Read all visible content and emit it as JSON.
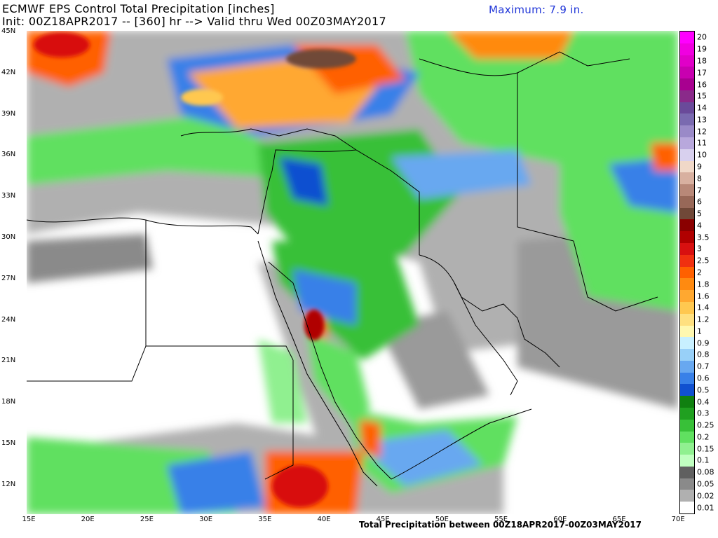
{
  "header": {
    "title": "ECMWF EPS Control Total Precipitation [inches]",
    "subtitle": "Init: 00Z18APR2017 -- [360] hr --> Valid thru Wed 00Z03MAY2017",
    "maximum": "Maximum: 7.9 in."
  },
  "footer": "Total Precipitation between 00Z18APR2017-00Z03MAY2017",
  "map": {
    "lon_labels": [
      "15E",
      "20E",
      "25E",
      "30E",
      "35E",
      "40E",
      "45E",
      "50E",
      "55E",
      "60E",
      "65E",
      "70E"
    ],
    "lat_labels": [
      "45N",
      "42N",
      "39N",
      "36N",
      "33N",
      "30N",
      "27N",
      "24N",
      "21N",
      "18N",
      "15N",
      "12N"
    ]
  },
  "legend": {
    "levels": [
      {
        "label": "20",
        "color": "#ff00ff"
      },
      {
        "label": "19",
        "color": "#f000e0"
      },
      {
        "label": "18",
        "color": "#e000c8"
      },
      {
        "label": "17",
        "color": "#c800b0"
      },
      {
        "label": "16",
        "color": "#a80090"
      },
      {
        "label": "15",
        "color": "#8a2a8a"
      },
      {
        "label": "14",
        "color": "#6a4a9a"
      },
      {
        "label": "13",
        "color": "#7a6ab0"
      },
      {
        "label": "12",
        "color": "#9a8ac8"
      },
      {
        "label": "11",
        "color": "#b8a8dc"
      },
      {
        "label": "10",
        "color": "#d8d0ee"
      },
      {
        "label": "9",
        "color": "#f0d8c8"
      },
      {
        "label": "8",
        "color": "#d8b0a0"
      },
      {
        "label": "7",
        "color": "#b88878"
      },
      {
        "label": "6",
        "color": "#986858"
      },
      {
        "label": "5",
        "color": "#704838"
      },
      {
        "label": "4",
        "color": "#8a0000"
      },
      {
        "label": "3.5",
        "color": "#b00000"
      },
      {
        "label": "3",
        "color": "#d81010"
      },
      {
        "label": "2.5",
        "color": "#f03010"
      },
      {
        "label": "2",
        "color": "#ff6000"
      },
      {
        "label": "1.8",
        "color": "#ff8a10"
      },
      {
        "label": "1.6",
        "color": "#ffa830"
      },
      {
        "label": "1.4",
        "color": "#ffc850"
      },
      {
        "label": "1.2",
        "color": "#ffe080"
      },
      {
        "label": "1",
        "color": "#fff8b0"
      },
      {
        "label": "0.9",
        "color": "#c8f0ff"
      },
      {
        "label": "0.8",
        "color": "#98d0f8"
      },
      {
        "label": "0.7",
        "color": "#68a8f0"
      },
      {
        "label": "0.6",
        "color": "#3880e8"
      },
      {
        "label": "0.5",
        "color": "#1050d0"
      },
      {
        "label": "0.4",
        "color": "#108010"
      },
      {
        "label": "0.3",
        "color": "#20a020"
      },
      {
        "label": "0.25",
        "color": "#38c038"
      },
      {
        "label": "0.2",
        "color": "#60e060"
      },
      {
        "label": "0.15",
        "color": "#90f090"
      },
      {
        "label": "0.1",
        "color": "#c0ffc0"
      },
      {
        "label": "0.08",
        "color": "#606060"
      },
      {
        "label": "0.05",
        "color": "#8a8a8a"
      },
      {
        "label": "0.02",
        "color": "#b0b0b0"
      },
      {
        "label": "0.01",
        "color": "#ffffff"
      }
    ]
  }
}
